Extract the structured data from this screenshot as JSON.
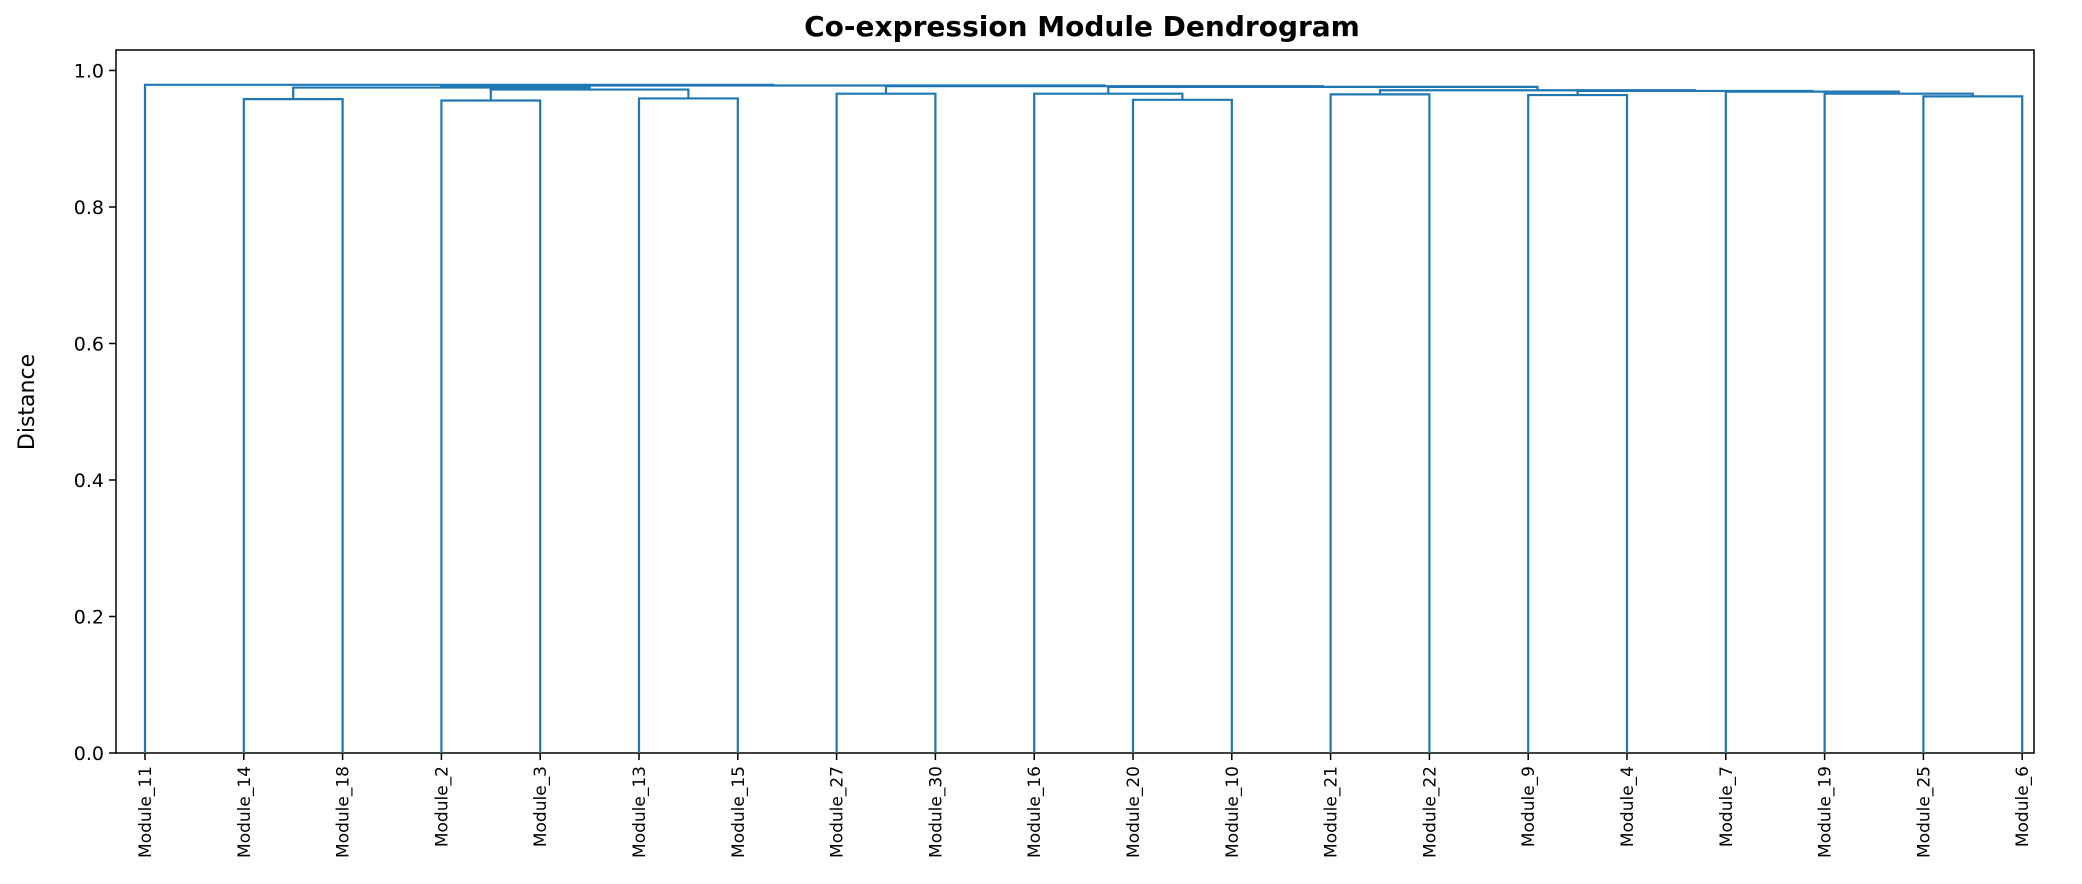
{
  "chart_data": {
    "type": "dendrogram",
    "title": "Co-expression Module Dendrogram",
    "xlabel": "",
    "ylabel": "Distance",
    "ylim": [
      0.0,
      1.03
    ],
    "yticks": [
      "0.0",
      "0.2",
      "0.4",
      "0.6",
      "0.8",
      "1.0"
    ],
    "grid": false,
    "line_color": "#1f77b4",
    "leaves": [
      "Module_11",
      "Module_14",
      "Module_18",
      "Module_2",
      "Module_3",
      "Module_13",
      "Module_15",
      "Module_27",
      "Module_30",
      "Module_16",
      "Module_20",
      "Module_10",
      "Module_21",
      "Module_22",
      "Module_9",
      "Module_4",
      "Module_7",
      "Module_19",
      "Module_25",
      "Module_6"
    ],
    "merges": [
      {
        "a": "L1",
        "b": "L2",
        "height": 0.958
      },
      {
        "a": "L3",
        "b": "L4",
        "height": 0.956
      },
      {
        "a": "L5",
        "b": "L6",
        "height": 0.959
      },
      {
        "a": "L3+L4",
        "b": "L5+L6",
        "height": 0.972
      },
      {
        "a": "L1+L2",
        "b": "L3..L6",
        "height": 0.975
      },
      {
        "a": "L7",
        "b": "L8",
        "height": 0.966
      },
      {
        "a": "L9",
        "b": "L10",
        "height": 0.966
      },
      {
        "a": "L10",
        "b": "L11",
        "height": 0.957
      },
      {
        "a": "L9..L11",
        "b": "L12..L19",
        "height": 0.976
      },
      {
        "a": "L12",
        "b": "L13",
        "height": 0.965
      },
      {
        "a": "L14",
        "b": "L15",
        "height": 0.964
      },
      {
        "a": "L16",
        "b": "L17..L19",
        "height": 0.969
      },
      {
        "a": "L18",
        "b": "L19",
        "height": 0.962
      },
      {
        "a": "L17",
        "b": "L18+L19",
        "height": 0.966
      },
      {
        "a": "L0",
        "b": "rest",
        "height": 0.979
      }
    ]
  }
}
